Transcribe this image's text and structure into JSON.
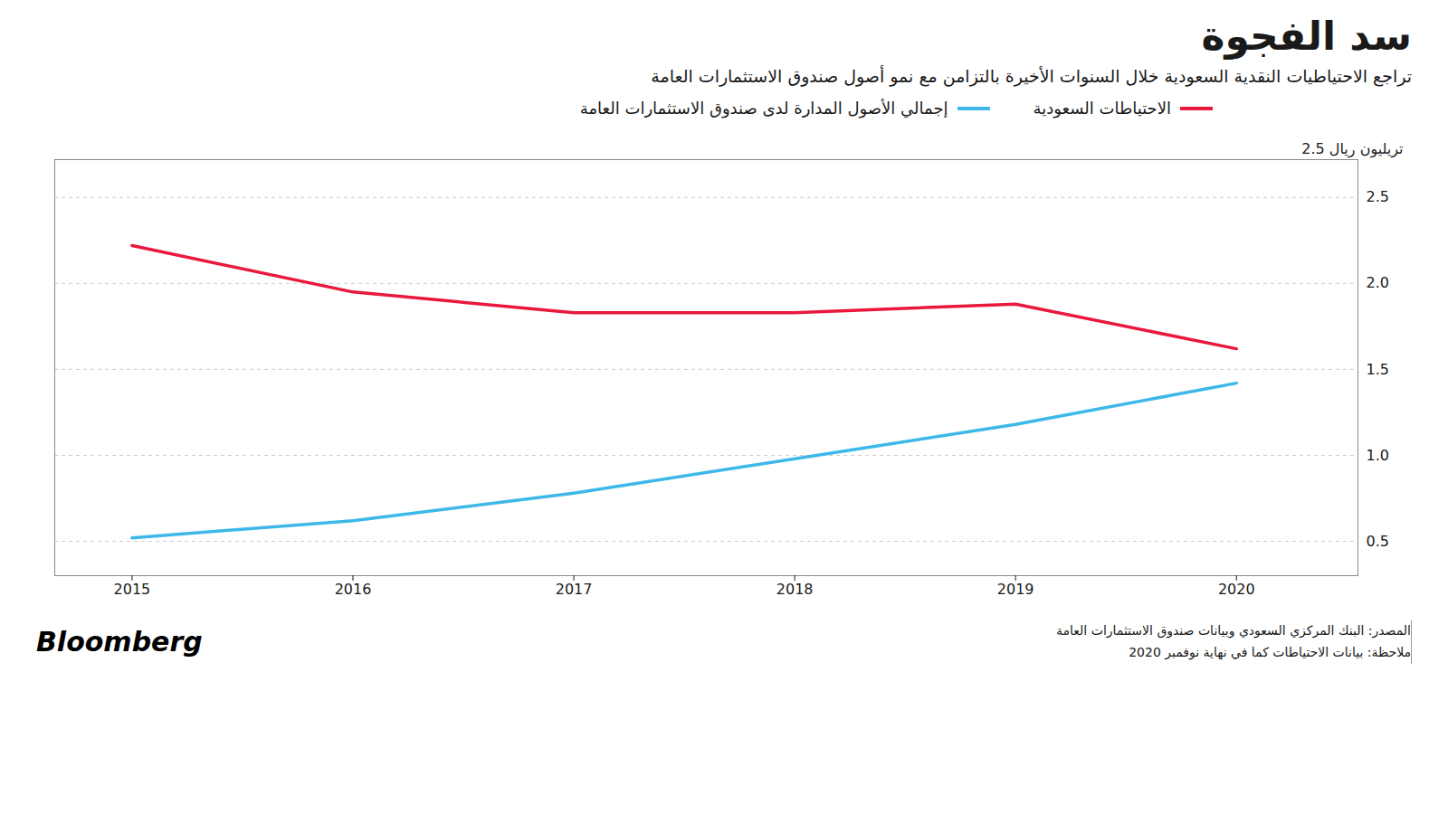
{
  "chart_data": {
    "type": "line",
    "title": "سد الفجوة",
    "subtitle": "تراجع الاحتياطيات النقدية السعودية خلال السنوات الأخيرة بالتزامن مع نمو أصول صندوق الاستثمارات العامة",
    "ylabel": "2.5 تريليون ريال",
    "annotations": [
      "المصدر: البنك المركزي السعودي وبيانات صندوق الاستثمارات العامة",
      "ملاحظة: بيانات الاحتياطات كما في نهاية نوفمبر 2020",
      "Bloomberg"
    ],
    "x": [
      2015,
      2016,
      2017,
      2018,
      2019,
      2020
    ],
    "series": [
      {
        "name": "الاحتياطات السعودية",
        "color": "#e8193c",
        "values": [
          2.22,
          1.95,
          1.83,
          1.83,
          1.88,
          1.62
        ]
      },
      {
        "name": "إجمالي الأصول المدارة لدى صندوق الاستثمارات العامة",
        "color": "#3db8e8",
        "values": [
          0.52,
          0.62,
          0.78,
          0.98,
          1.18,
          1.42
        ]
      }
    ],
    "xlim": [
      2014.65,
      2020.55
    ],
    "xticks": [
      2015,
      2016,
      2017,
      2018,
      2019,
      2020
    ],
    "ylim": [
      0.3,
      2.72
    ],
    "yticks": [
      0.5,
      {
        "value": 1.0,
        "label": "1.0"
      },
      1.5,
      {
        "value": 2.0,
        "label": "2.0"
      },
      2.5
    ],
    "grid": true,
    "legend": "top"
  }
}
